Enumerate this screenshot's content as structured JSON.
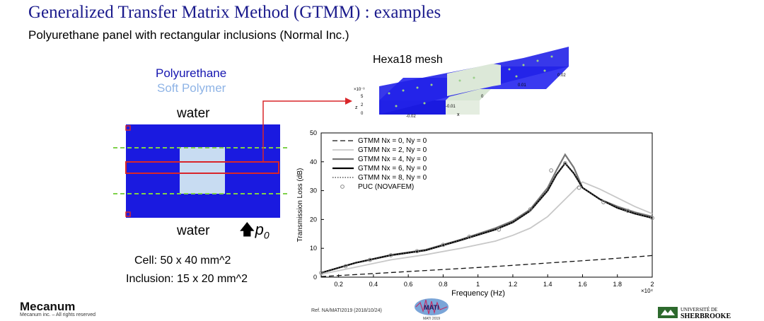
{
  "title": "Generalized Transfer Matrix Method (GTMM) : examples",
  "subtitle": "Polyurethane panel with rectangular inclusions (Normal Inc.)",
  "schematic": {
    "legend_material": "Polyurethane",
    "legend_inclusion": "Soft Polymer",
    "water_top": "water",
    "water_bottom": "water",
    "pressure_label": "p",
    "pressure_sub": "0",
    "cell_size": "Cell: 50 x 40 mm^2",
    "inclusion_size": "Inclusion: 15 x 20 mm^2"
  },
  "mesh": {
    "label": "Hexa18 mesh",
    "axis_x_label": "x",
    "axis_z_label": "z",
    "z_exponent": "×10⁻³",
    "x_ticks": [
      "-0.02",
      "-0.01",
      "0"
    ],
    "y_ticks": [
      "0.01",
      "0.02"
    ],
    "z_ticks": [
      "5",
      "2",
      "0"
    ]
  },
  "colors": {
    "polyurethane": "#1a1ae0",
    "soft_polymer": "#c8dcf2",
    "title": "#1a1a8c",
    "dashed_guide": "#7fd14a",
    "highlight": "#d9262a"
  },
  "chart_data": {
    "type": "line",
    "title": "",
    "xlabel": "Frequency (Hz)",
    "x_exponent": "×10⁴",
    "ylabel": "Transmission Loss (dB)",
    "xlim": [
      0.1,
      2.0
    ],
    "ylim": [
      0,
      50
    ],
    "x_ticks": [
      0.2,
      0.4,
      0.6,
      0.8,
      1.0,
      1.2,
      1.4,
      1.6,
      1.8,
      2.0
    ],
    "x_tick_labels": [
      "0.2",
      "0.4",
      "0.6",
      "0.8",
      "1",
      "1.2",
      "1.4",
      "1.6",
      "1.8",
      "2"
    ],
    "y_ticks": [
      0,
      10,
      20,
      30,
      40,
      50
    ],
    "y_tick_labels": [
      "0",
      "10",
      "20",
      "30",
      "40",
      "50"
    ],
    "series": [
      {
        "name": "GTMM N_x = 0, N_y = 0",
        "label_main": "GTMM ",
        "label_math": "Nx = 0, Ny = 0",
        "style": "dashed",
        "color": "#111111",
        "x": [
          0.1,
          0.3,
          0.5,
          0.7,
          0.9,
          1.1,
          1.3,
          1.5,
          1.7,
          1.9,
          2.0
        ],
        "y": [
          0.2,
          0.9,
          1.6,
          2.3,
          3.0,
          3.7,
          4.5,
          5.3,
          6.1,
          7.0,
          7.5
        ]
      },
      {
        "name": "GTMM N_x = 2, N_y = 0",
        "label_main": "GTMM ",
        "label_math": "Nx = 2, Ny = 0",
        "style": "solid-light",
        "color": "#c8c8c8",
        "x": [
          0.1,
          0.3,
          0.5,
          0.7,
          0.9,
          1.1,
          1.2,
          1.3,
          1.4,
          1.5,
          1.6,
          1.7,
          1.8,
          1.9,
          2.0
        ],
        "y": [
          1.0,
          3.5,
          6.0,
          7.8,
          10.0,
          12.5,
          14.5,
          17.0,
          21.0,
          27.0,
          33.0,
          30.5,
          27.5,
          24.5,
          22.0
        ]
      },
      {
        "name": "GTMM N_x = 4, N_y = 0",
        "label_main": "GTMM ",
        "label_math": "Nx = 4, Ny = 0",
        "style": "solid-mid",
        "color": "#777777",
        "x": [
          0.1,
          0.3,
          0.5,
          0.7,
          0.9,
          1.1,
          1.2,
          1.3,
          1.4,
          1.45,
          1.5,
          1.55,
          1.6,
          1.7,
          1.8,
          1.9,
          2.0
        ],
        "y": [
          1.5,
          5.0,
          7.7,
          9.5,
          13.0,
          17.0,
          19.5,
          23.5,
          31.0,
          37.0,
          42.5,
          38.0,
          31.0,
          27.0,
          24.5,
          22.5,
          21.0
        ]
      },
      {
        "name": "GTMM N_x = 6, N_y = 0",
        "label_main": "GTMM ",
        "label_math": "Nx = 6, Ny = 0",
        "style": "solid-bold",
        "color": "#000000",
        "x": [
          0.1,
          0.3,
          0.5,
          0.7,
          0.9,
          1.1,
          1.2,
          1.3,
          1.4,
          1.45,
          1.5,
          1.55,
          1.6,
          1.7,
          1.8,
          1.9,
          2.0
        ],
        "y": [
          1.5,
          5.0,
          7.6,
          9.3,
          12.8,
          16.5,
          19.0,
          23.0,
          30.0,
          35.5,
          39.5,
          36.0,
          31.0,
          27.0,
          24.0,
          22.0,
          20.5
        ]
      },
      {
        "name": "GTMM N_x = 8, N_y = 0",
        "label_main": "GTMM ",
        "label_math": "Nx = 8, Ny = 0",
        "style": "dotted",
        "color": "#555555",
        "x": [
          0.1,
          0.3,
          0.5,
          0.7,
          0.9,
          1.1,
          1.2,
          1.3,
          1.4,
          1.45,
          1.5,
          1.55,
          1.6,
          1.7,
          1.8,
          1.9,
          2.0
        ],
        "y": [
          1.5,
          5.0,
          7.6,
          9.3,
          12.8,
          16.5,
          19.0,
          23.0,
          30.0,
          35.5,
          39.5,
          36.0,
          31.0,
          27.0,
          24.0,
          22.0,
          20.5
        ]
      },
      {
        "name": "PUC (NOVAFEM)",
        "label_main": "PUC (NOVAFEM)",
        "label_math": "",
        "style": "markers",
        "color": "#888888",
        "x": [
          0.1,
          0.24,
          0.38,
          0.5,
          0.65,
          0.8,
          0.95,
          1.12,
          1.3,
          1.42,
          1.5,
          1.58,
          1.72,
          1.86,
          2.0
        ],
        "y": [
          1.5,
          3.8,
          6.0,
          7.6,
          9.0,
          11.2,
          14.0,
          16.5,
          23.5,
          37.0,
          39.5,
          31.0,
          26.0,
          23.0,
          20.5
        ]
      }
    ]
  },
  "footer": {
    "ref": "Ref. NA/MATI2019   (2018/10/24)",
    "logo_left": "Mecanum",
    "logo_left_sub": "Mecanum inc. – All rights reserved",
    "logo_center": "MATI",
    "logo_center_sub": "MATI 2019",
    "logo_right_1": "UNIVERSITÉ DE",
    "logo_right_2": "SHERBROOKE"
  }
}
